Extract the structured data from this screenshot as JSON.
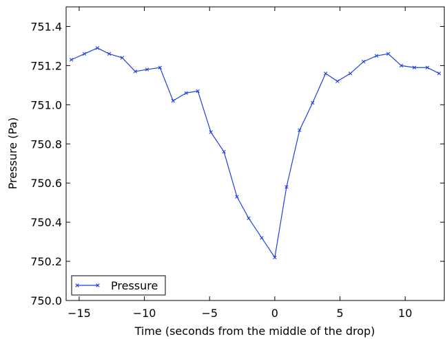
{
  "chart_data": {
    "type": "line",
    "title": "",
    "xlabel": "Time (seconds from the middle of the drop)",
    "ylabel": "Pressure (Pa)",
    "xlim": [
      -16,
      13
    ],
    "ylim": [
      750.0,
      751.5
    ],
    "xticks": [
      -15,
      -10,
      -5,
      0,
      5,
      10
    ],
    "xtick_labels": [
      "−15",
      "−10",
      "−5",
      "0",
      "5",
      "10"
    ],
    "yticks": [
      750.0,
      750.2,
      750.4,
      750.6,
      750.8,
      751.0,
      751.2,
      751.4
    ],
    "ytick_labels": [
      "750.0",
      "750.2",
      "750.4",
      "750.6",
      "750.8",
      "751.0",
      "751.2",
      "751.4"
    ],
    "grid": false,
    "legend_position": "lower-left",
    "series": [
      {
        "name": "Pressure",
        "color": "#1f3fe0",
        "marker": "x",
        "x": [
          -15.6,
          -14.6,
          -13.6,
          -12.7,
          -11.7,
          -10.7,
          -9.8,
          -8.8,
          -7.8,
          -6.8,
          -5.9,
          -4.9,
          -3.9,
          -2.9,
          -2.0,
          -1.0,
          0.0,
          0.9,
          1.9,
          2.9,
          3.9,
          4.8,
          5.8,
          6.8,
          7.8,
          8.7,
          9.7,
          10.7,
          11.7,
          12.6
        ],
        "y": [
          751.23,
          751.26,
          751.29,
          751.26,
          751.24,
          751.17,
          751.18,
          751.19,
          751.02,
          751.06,
          751.07,
          750.86,
          750.76,
          750.53,
          750.42,
          750.32,
          750.22,
          750.58,
          750.87,
          751.01,
          751.16,
          751.12,
          751.16,
          751.22,
          751.25,
          751.26,
          751.2,
          751.19,
          751.19,
          751.16
        ]
      }
    ]
  }
}
